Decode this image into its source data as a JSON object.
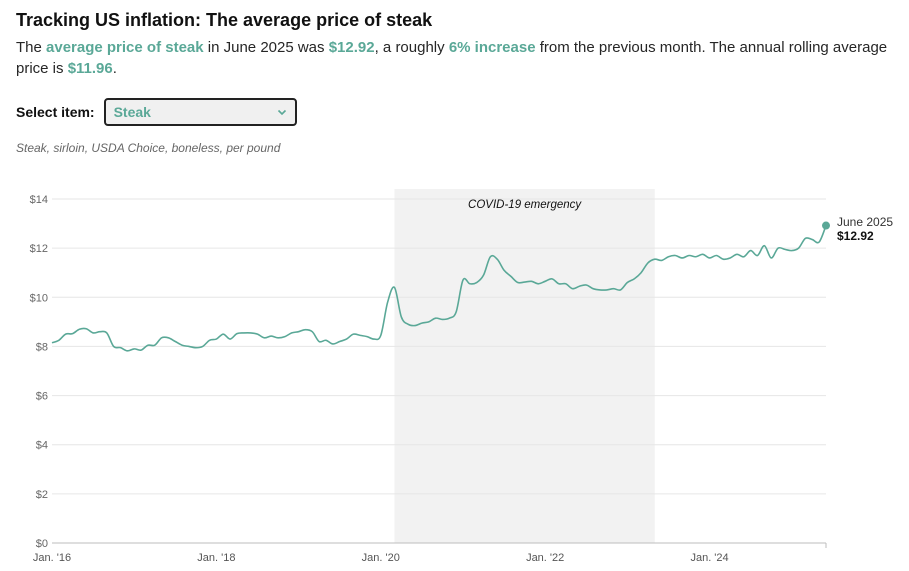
{
  "header": {
    "title": "Tracking US inflation: The average price of steak",
    "summary": {
      "t1": "The ",
      "item_link": "average price of steak",
      "t2": " in June 2025 was ",
      "price": "$12.92",
      "t3": ", a roughly ",
      "change": "6% increase",
      "t4": " from the previous month. The annual rolling average price is ",
      "avg": "$11.96",
      "t5": "."
    }
  },
  "selector": {
    "label": "Select item:",
    "value": "Steak"
  },
  "description": "Steak, sirloin, USDA Choice, boneless, per pound",
  "colors": {
    "line": "#5aa897",
    "shade": "#f2f2f2",
    "grid": "#e6e6e6"
  },
  "chart_data": {
    "type": "line",
    "ylim": [
      0,
      14
    ],
    "y_ticks": [
      {
        "value": 0,
        "label": "$0"
      },
      {
        "value": 2,
        "label": "$2"
      },
      {
        "value": 4,
        "label": "$4"
      },
      {
        "value": 6,
        "label": "$6"
      },
      {
        "value": 8,
        "label": "$8"
      },
      {
        "value": 10,
        "label": "$10"
      },
      {
        "value": 12,
        "label": "$12"
      },
      {
        "value": 14,
        "label": "$14"
      }
    ],
    "x_range": [
      "2016-01",
      "2025-06"
    ],
    "x_ticks": [
      {
        "value": "2016-01",
        "label": "Jan. '16"
      },
      {
        "value": "2018-01",
        "label": "Jan. '18"
      },
      {
        "value": "2020-01",
        "label": "Jan. '20"
      },
      {
        "value": "2022-01",
        "label": "Jan. '22"
      },
      {
        "value": "2024-01",
        "label": "Jan. '24"
      }
    ],
    "shaded_region": {
      "start": "2020-03",
      "end": "2023-05",
      "label": "COVID-19 emergency"
    },
    "end_label": {
      "date": "June 2025",
      "value": "$12.92"
    },
    "series": [
      {
        "x": [
          "2016-01",
          "2016-02",
          "2016-03",
          "2016-04",
          "2016-05",
          "2016-06",
          "2016-07",
          "2016-08",
          "2016-09",
          "2016-10",
          "2016-11",
          "2016-12",
          "2017-01",
          "2017-02",
          "2017-03",
          "2017-04",
          "2017-05",
          "2017-06",
          "2017-07",
          "2017-08",
          "2017-09",
          "2017-10",
          "2017-11",
          "2017-12",
          "2018-01",
          "2018-02",
          "2018-03",
          "2018-04",
          "2018-05",
          "2018-06",
          "2018-07",
          "2018-08",
          "2018-09",
          "2018-10",
          "2018-11",
          "2018-12",
          "2019-01",
          "2019-02",
          "2019-03",
          "2019-04",
          "2019-05",
          "2019-06",
          "2019-07",
          "2019-08",
          "2019-09",
          "2019-10",
          "2019-11",
          "2019-12",
          "2020-01",
          "2020-02",
          "2020-03",
          "2020-04",
          "2020-05",
          "2020-06",
          "2020-07",
          "2020-08",
          "2020-09",
          "2020-10",
          "2020-11",
          "2020-12",
          "2021-01",
          "2021-02",
          "2021-03",
          "2021-04",
          "2021-05",
          "2021-06",
          "2021-07",
          "2021-08",
          "2021-09",
          "2021-10",
          "2021-11",
          "2021-12",
          "2022-01",
          "2022-02",
          "2022-03",
          "2022-04",
          "2022-05",
          "2022-06",
          "2022-07",
          "2022-08",
          "2022-09",
          "2022-10",
          "2022-11",
          "2022-12",
          "2023-01",
          "2023-02",
          "2023-03",
          "2023-04",
          "2023-05",
          "2023-06",
          "2023-07",
          "2023-08",
          "2023-09",
          "2023-10",
          "2023-11",
          "2023-12",
          "2024-01",
          "2024-02",
          "2024-03",
          "2024-04",
          "2024-05",
          "2024-06",
          "2024-07",
          "2024-08",
          "2024-09",
          "2024-10",
          "2024-11",
          "2024-12",
          "2025-01",
          "2025-02",
          "2025-03",
          "2025-04",
          "2025-05",
          "2025-06"
        ],
        "values": [
          8.15,
          8.25,
          8.5,
          8.52,
          8.7,
          8.72,
          8.55,
          8.6,
          8.55,
          8.0,
          7.95,
          7.82,
          7.9,
          7.85,
          8.05,
          8.05,
          8.35,
          8.35,
          8.2,
          8.05,
          8.0,
          7.95,
          8.0,
          8.25,
          8.3,
          8.5,
          8.3,
          8.52,
          8.55,
          8.55,
          8.5,
          8.35,
          8.42,
          8.35,
          8.4,
          8.55,
          8.6,
          8.68,
          8.6,
          8.2,
          8.25,
          8.1,
          8.2,
          8.3,
          8.5,
          8.45,
          8.4,
          8.3,
          8.45,
          9.8,
          10.4,
          9.2,
          8.9,
          8.85,
          8.95,
          9.0,
          9.15,
          9.1,
          9.15,
          9.4,
          10.7,
          10.55,
          10.6,
          10.9,
          11.65,
          11.55,
          11.1,
          10.85,
          10.6,
          10.62,
          10.65,
          10.55,
          10.65,
          10.75,
          10.55,
          10.55,
          10.35,
          10.45,
          10.5,
          10.35,
          10.3,
          10.3,
          10.35,
          10.3,
          10.6,
          10.75,
          11.0,
          11.4,
          11.55,
          11.5,
          11.65,
          11.7,
          11.6,
          11.7,
          11.65,
          11.75,
          11.6,
          11.7,
          11.55,
          11.6,
          11.75,
          11.65,
          11.9,
          11.7,
          12.1,
          11.6,
          12.0,
          11.95,
          11.9,
          12.0,
          12.4,
          12.35,
          12.25,
          12.92
        ]
      }
    ]
  }
}
